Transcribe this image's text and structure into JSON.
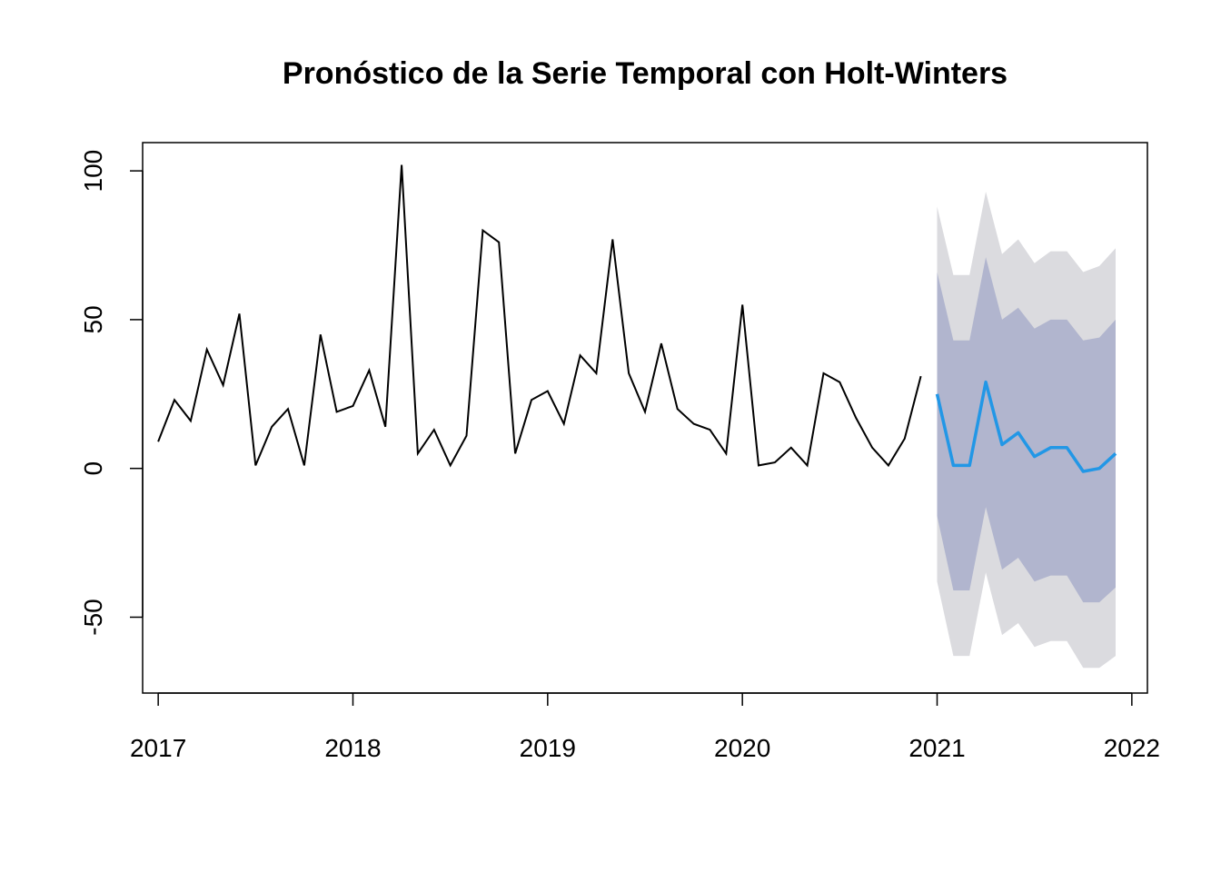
{
  "chart_data": {
    "type": "line",
    "title": "Pronóstico de la Serie Temporal con Holt-Winters",
    "xlabel": "",
    "ylabel": "",
    "xlim": [
      2016.92,
      2022.08
    ],
    "ylim": [
      -75.5,
      109.5
    ],
    "x_ticks": [
      2017,
      2018,
      2019,
      2020,
      2021,
      2022
    ],
    "y_ticks": [
      -50,
      0,
      50,
      100
    ],
    "grid": false,
    "legend": "none",
    "colors": {
      "observed": "#000000",
      "forecast": "#2297E6",
      "band_80": "#B1B5CE",
      "band_95": "#DBDBDF"
    },
    "series": [
      {
        "kind": "observed",
        "x": [
          "2017-01",
          "2017-02",
          "2017-03",
          "2017-04",
          "2017-05",
          "2017-06",
          "2017-07",
          "2017-08",
          "2017-09",
          "2017-10",
          "2017-11",
          "2017-12",
          "2018-01",
          "2018-02",
          "2018-03",
          "2018-04",
          "2018-05",
          "2018-06",
          "2018-07",
          "2018-08",
          "2018-09",
          "2018-10",
          "2018-11",
          "2018-12",
          "2019-01",
          "2019-02",
          "2019-03",
          "2019-04",
          "2019-05",
          "2019-06",
          "2019-07",
          "2019-08",
          "2019-09",
          "2019-10",
          "2019-11",
          "2019-12",
          "2020-01",
          "2020-02",
          "2020-03",
          "2020-04",
          "2020-05",
          "2020-06",
          "2020-07",
          "2020-08",
          "2020-09",
          "2020-10",
          "2020-11",
          "2020-12"
        ],
        "values": [
          9,
          23,
          16,
          40,
          28,
          52,
          1,
          14,
          20,
          1,
          45,
          19,
          21,
          33,
          14,
          102,
          5,
          13,
          1,
          11,
          80,
          76,
          5,
          23,
          26,
          15,
          38,
          32,
          77,
          32,
          19,
          42,
          20,
          15,
          13,
          5,
          55,
          1,
          2,
          7,
          1,
          32,
          29,
          17,
          7,
          1,
          10,
          31
        ]
      },
      {
        "kind": "forecast",
        "x": [
          "2021-01",
          "2021-02",
          "2021-03",
          "2021-04",
          "2021-05",
          "2021-06",
          "2021-07",
          "2021-08",
          "2021-09",
          "2021-10",
          "2021-11",
          "2021-12"
        ],
        "values": [
          25,
          1,
          1,
          29,
          8,
          12,
          4,
          7,
          7,
          -1,
          0,
          5
        ],
        "lo80": [
          -16,
          -41,
          -41,
          -13,
          -34,
          -30,
          -38,
          -36,
          -36,
          -45,
          -45,
          -40
        ],
        "hi80": [
          66,
          43,
          43,
          71,
          50,
          54,
          47,
          50,
          50,
          43,
          44,
          50
        ],
        "lo95": [
          -38,
          -63,
          -63,
          -35,
          -56,
          -52,
          -60,
          -58,
          -58,
          -67,
          -67,
          -63
        ],
        "hi95": [
          88,
          65,
          65,
          93,
          72,
          77,
          69,
          73,
          73,
          66,
          68,
          74
        ]
      }
    ]
  }
}
